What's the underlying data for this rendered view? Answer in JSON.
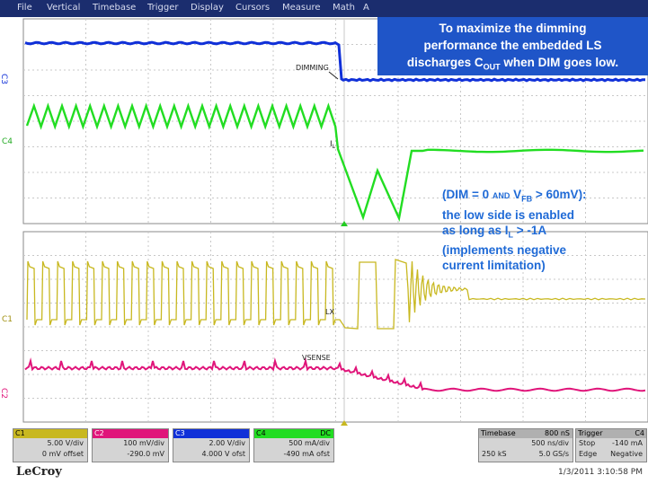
{
  "menu": {
    "items": [
      "File",
      "Vertical",
      "Timebase",
      "Trigger",
      "Display",
      "Cursors",
      "Measure",
      "Math",
      "A"
    ]
  },
  "callout": {
    "line1": "To maximize the dimming",
    "line2": "performance the embedded LS",
    "line3_pre": "discharges C",
    "line3_sub": "OUT",
    "line3_post": " when DIM goes low."
  },
  "note": {
    "l1_a": "(DIM = 0 ",
    "l1_and": "AND",
    "l1_b": " V",
    "l1_sub": "FB",
    "l1_c": " > 60mV):",
    "l2": "the low side is enabled",
    "l3_a": "as long as I",
    "l3_sub": "L",
    "l3_b": " > -1A",
    "l4": "(implements negative",
    "l5": "current limitation)"
  },
  "traces": {
    "dimming_label": "DIMMING",
    "il_label": "I",
    "il_sub": "L",
    "lx_label": "LX",
    "vsense_label": "VSENSE",
    "ch_top_c4": "C4",
    "ch_top_c3": "C3",
    "ch_bottom_c1": "C1",
    "ch_bottom_c2": "C2"
  },
  "colors": {
    "menubar": "#1b2d6e",
    "ch_dimming": "#1030d8",
    "ch_il": "#22dd22",
    "ch_lx": "#c8b820",
    "ch_vsense": "#e0157a",
    "grid": "#c8c8c8",
    "callout": "#1f55c8"
  },
  "panels": {
    "c1": {
      "head": "C1",
      "scale": "5.00 V/div",
      "offset": "0 mV offset"
    },
    "c2": {
      "head": "C2",
      "scale": "100 mV/div",
      "offset": "-290.0 mV"
    },
    "c3": {
      "head": "C3",
      "scale": "2.00 V/div",
      "offset": "4.000 V ofst"
    },
    "c4": {
      "head": "C4",
      "coupling": "DC",
      "scale": "500 mA/div",
      "offset": "-490 mA ofst"
    },
    "timebase": {
      "head": "Timebase",
      "value": "800 nS",
      "rate": "500 ns/div",
      "samples": "250 kS",
      "srate": "5.0 GS/s"
    },
    "trigger": {
      "head": "Trigger",
      "code": "C4",
      "mode": "Stop",
      "level": "-140 mA",
      "type": "Edge",
      "slope": "Negative"
    }
  },
  "footer": {
    "brand": "LeCroy",
    "timestamp": "1/3/2011 3:10:58 PM"
  }
}
